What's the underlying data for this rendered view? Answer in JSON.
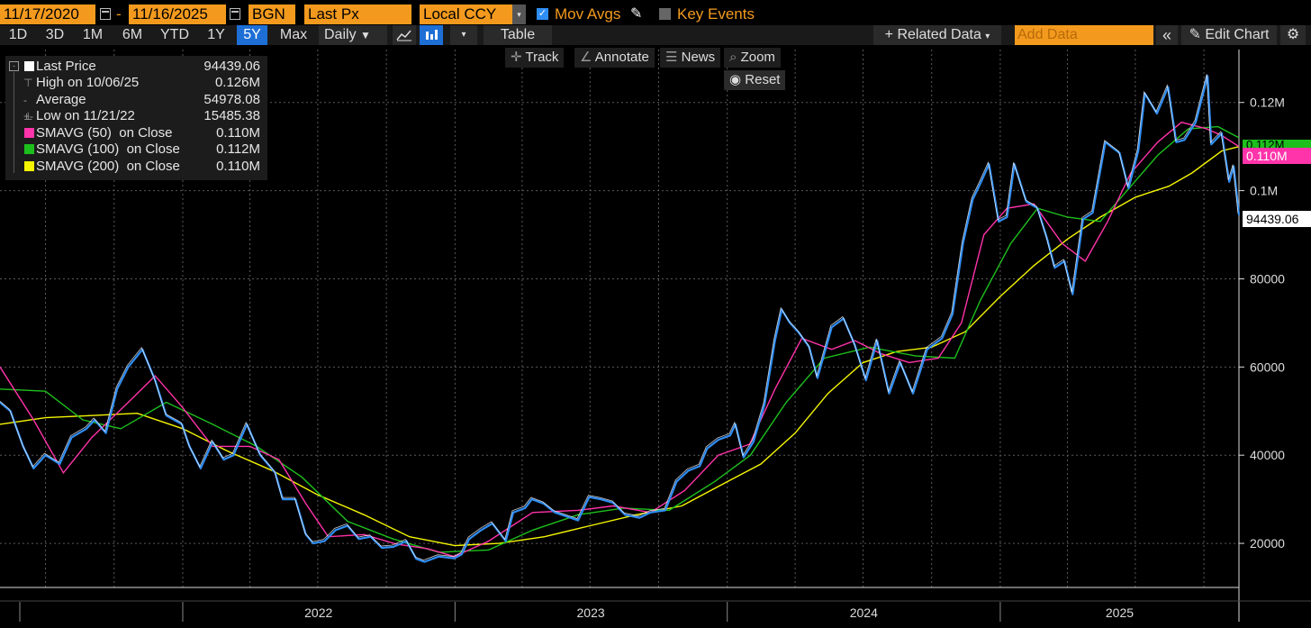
{
  "header": {
    "start_date": "11/17/2020",
    "date_sep": "-",
    "end_date": "11/16/2025",
    "source": "BGN",
    "field": "Last Px",
    "currency": "Local CCY",
    "mov_avgs_label": "Mov Avgs",
    "key_events_label": "Key Events"
  },
  "toolbar": {
    "periods": [
      "1D",
      "3D",
      "1M",
      "6M",
      "YTD",
      "1Y",
      "5Y",
      "Max"
    ],
    "selected_period": "5Y",
    "frequency": "Daily",
    "table_label": "Table",
    "related_data_label": "Related Data",
    "add_data_placeholder": "Add Data",
    "edit_chart_label": "Edit Chart"
  },
  "tools": {
    "track": "Track",
    "annotate": "Annotate",
    "news": "News",
    "zoom": "Zoom",
    "reset": "Reset"
  },
  "legend": {
    "last_price": {
      "label": "Last Price",
      "value": "94439.06"
    },
    "high": {
      "label": "High on 10/06/25",
      "value": "0.126M"
    },
    "average": {
      "label": "Average",
      "value": "54978.08"
    },
    "low": {
      "label": "Low on 11/21/22",
      "value": "15485.38"
    },
    "sma50": {
      "label": "SMAVG (50)  on Close",
      "value": "0.110M",
      "color": "#ff33aa"
    },
    "sma100": {
      "label": "SMAVG (100)  on Close",
      "value": "0.112M",
      "color": "#1dbf1d"
    },
    "sma200": {
      "label": "SMAVG (200)  on Close",
      "value": "0.110M",
      "color": "#f5f500"
    }
  },
  "tags": {
    "sma100": "0.112M",
    "sma50": "0.110M",
    "last": "94439.06"
  },
  "colors": {
    "accent": "#f39a1e",
    "price": "#2f8ef5",
    "price_highlight": "#ffffff",
    "sma50": "#ff33aa",
    "sma100": "#1dbf1d",
    "sma200": "#f5f500",
    "selected_tab": "#1d6fd6"
  },
  "chart_data": {
    "type": "line",
    "title": "BGN Last Px, Local CCY, Daily",
    "x_range": [
      "2021-05-01",
      "2025-11-17"
    ],
    "x_ticks": [
      "2022",
      "2023",
      "2024",
      "2025"
    ],
    "y_ticks": [
      20000,
      40000,
      60000,
      80000,
      "0.1M",
      "0.12M"
    ],
    "ylim": [
      10000,
      132000
    ],
    "grid": true,
    "series": [
      {
        "name": "Last Price",
        "color": "#2f8ef5",
        "points": [
          [
            "2021-05-01",
            52000
          ],
          [
            "2021-05-15",
            50000
          ],
          [
            "2021-06-01",
            42000
          ],
          [
            "2021-06-15",
            37000
          ],
          [
            "2021-07-01",
            40000
          ],
          [
            "2021-07-20",
            38000
          ],
          [
            "2021-08-05",
            44000
          ],
          [
            "2021-08-25",
            46000
          ],
          [
            "2021-09-05",
            48000
          ],
          [
            "2021-09-20",
            45000
          ],
          [
            "2021-10-05",
            55000
          ],
          [
            "2021-10-20",
            60000
          ],
          [
            "2021-11-08",
            64000
          ],
          [
            "2021-11-25",
            57000
          ],
          [
            "2021-12-10",
            49000
          ],
          [
            "2021-12-31",
            47000
          ],
          [
            "2022-01-10",
            42000
          ],
          [
            "2022-01-25",
            37000
          ],
          [
            "2022-02-10",
            43000
          ],
          [
            "2022-02-25",
            39000
          ],
          [
            "2022-03-10",
            40000
          ],
          [
            "2022-03-28",
            47000
          ],
          [
            "2022-04-15",
            40000
          ],
          [
            "2022-05-05",
            36000
          ],
          [
            "2022-05-15",
            30000
          ],
          [
            "2022-06-01",
            30000
          ],
          [
            "2022-06-15",
            22000
          ],
          [
            "2022-06-25",
            20000
          ],
          [
            "2022-07-10",
            20500
          ],
          [
            "2022-07-25",
            23000
          ],
          [
            "2022-08-10",
            24000
          ],
          [
            "2022-08-25",
            21000
          ],
          [
            "2022-09-10",
            21500
          ],
          [
            "2022-09-25",
            19000
          ],
          [
            "2022-10-10",
            19200
          ],
          [
            "2022-10-28",
            20500
          ],
          [
            "2022-11-10",
            16500
          ],
          [
            "2022-11-21",
            15800
          ],
          [
            "2022-12-10",
            17000
          ],
          [
            "2022-12-31",
            16600
          ],
          [
            "2023-01-10",
            17500
          ],
          [
            "2023-01-20",
            21000
          ],
          [
            "2023-02-05",
            23000
          ],
          [
            "2023-02-20",
            24500
          ],
          [
            "2023-03-10",
            20500
          ],
          [
            "2023-03-20",
            27000
          ],
          [
            "2023-04-05",
            28000
          ],
          [
            "2023-04-14",
            30000
          ],
          [
            "2023-04-30",
            29000
          ],
          [
            "2023-05-15",
            27000
          ],
          [
            "2023-06-05",
            25800
          ],
          [
            "2023-06-15",
            25200
          ],
          [
            "2023-06-30",
            30500
          ],
          [
            "2023-07-15",
            30000
          ],
          [
            "2023-08-01",
            29200
          ],
          [
            "2023-08-17",
            26500
          ],
          [
            "2023-09-05",
            25800
          ],
          [
            "2023-09-20",
            27000
          ],
          [
            "2023-10-10",
            27500
          ],
          [
            "2023-10-25",
            34000
          ],
          [
            "2023-11-10",
            36500
          ],
          [
            "2023-11-25",
            37500
          ],
          [
            "2023-12-05",
            41500
          ],
          [
            "2023-12-20",
            43500
          ],
          [
            "2024-01-05",
            44500
          ],
          [
            "2024-01-12",
            47000
          ],
          [
            "2024-01-23",
            39500
          ],
          [
            "2024-02-05",
            43000
          ],
          [
            "2024-02-20",
            51500
          ],
          [
            "2024-03-05",
            66000
          ],
          [
            "2024-03-14",
            73000
          ],
          [
            "2024-03-25",
            70000
          ],
          [
            "2024-04-05",
            68000
          ],
          [
            "2024-04-20",
            64500
          ],
          [
            "2024-05-01",
            57500
          ],
          [
            "2024-05-20",
            69000
          ],
          [
            "2024-06-05",
            71000
          ],
          [
            "2024-06-20",
            65000
          ],
          [
            "2024-07-05",
            57000
          ],
          [
            "2024-07-20",
            66000
          ],
          [
            "2024-08-05",
            54000
          ],
          [
            "2024-08-20",
            61000
          ],
          [
            "2024-09-06",
            54000
          ],
          [
            "2024-09-25",
            64000
          ],
          [
            "2024-10-15",
            66500
          ],
          [
            "2024-10-29",
            72000
          ],
          [
            "2024-11-12",
            88000
          ],
          [
            "2024-11-25",
            98000
          ],
          [
            "2024-12-05",
            101500
          ],
          [
            "2024-12-17",
            106000
          ],
          [
            "2024-12-30",
            93000
          ],
          [
            "2025-01-10",
            94000
          ],
          [
            "2025-01-20",
            106000
          ],
          [
            "2025-02-05",
            97500
          ],
          [
            "2025-02-20",
            96000
          ],
          [
            "2025-03-05",
            89000
          ],
          [
            "2025-03-15",
            82500
          ],
          [
            "2025-03-28",
            84000
          ],
          [
            "2025-04-08",
            76500
          ],
          [
            "2025-04-22",
            93500
          ],
          [
            "2025-05-05",
            95000
          ],
          [
            "2025-05-22",
            111000
          ],
          [
            "2025-06-10",
            108500
          ],
          [
            "2025-06-22",
            100500
          ],
          [
            "2025-07-05",
            109000
          ],
          [
            "2025-07-14",
            122000
          ],
          [
            "2025-07-30",
            117500
          ],
          [
            "2025-08-14",
            123500
          ],
          [
            "2025-08-25",
            111000
          ],
          [
            "2025-09-05",
            111500
          ],
          [
            "2025-09-20",
            115500
          ],
          [
            "2025-10-06",
            126000
          ],
          [
            "2025-10-11",
            110500
          ],
          [
            "2025-10-25",
            113000
          ],
          [
            "2025-11-04",
            102000
          ],
          [
            "2025-11-10",
            105500
          ],
          [
            "2025-11-17",
            94439
          ]
        ]
      },
      {
        "name": "SMAVG (50) on Close",
        "color": "#ff33aa",
        "points": [
          [
            "2021-05-01",
            60000
          ],
          [
            "2021-06-15",
            48000
          ],
          [
            "2021-07-25",
            36000
          ],
          [
            "2021-09-01",
            44000
          ],
          [
            "2021-10-20",
            52000
          ],
          [
            "2021-11-25",
            58000
          ],
          [
            "2021-12-31",
            51000
          ],
          [
            "2022-02-10",
            42000
          ],
          [
            "2022-04-01",
            42000
          ],
          [
            "2022-05-10",
            39000
          ],
          [
            "2022-06-15",
            29000
          ],
          [
            "2022-07-15",
            21500
          ],
          [
            "2022-09-01",
            22000
          ],
          [
            "2022-10-15",
            19800
          ],
          [
            "2022-11-25",
            18800
          ],
          [
            "2022-12-31",
            17000
          ],
          [
            "2023-02-15",
            20500
          ],
          [
            "2023-04-15",
            27000
          ],
          [
            "2023-06-15",
            27500
          ],
          [
            "2023-08-01",
            28500
          ],
          [
            "2023-09-20",
            27000
          ],
          [
            "2023-11-05",
            32000
          ],
          [
            "2023-12-20",
            40000
          ],
          [
            "2024-01-31",
            42500
          ],
          [
            "2024-03-05",
            55000
          ],
          [
            "2024-04-10",
            66500
          ],
          [
            "2024-05-20",
            64000
          ],
          [
            "2024-06-20",
            66000
          ],
          [
            "2024-07-25",
            63000
          ],
          [
            "2024-09-01",
            61000
          ],
          [
            "2024-10-10",
            62000
          ],
          [
            "2024-11-10",
            70000
          ],
          [
            "2024-12-10",
            90000
          ],
          [
            "2025-01-10",
            96000
          ],
          [
            "2025-02-15",
            97000
          ],
          [
            "2025-03-25",
            88000
          ],
          [
            "2025-04-25",
            84000
          ],
          [
            "2025-05-25",
            93000
          ],
          [
            "2025-06-25",
            104000
          ],
          [
            "2025-07-31",
            111000
          ],
          [
            "2025-09-01",
            115500
          ],
          [
            "2025-10-05",
            114000
          ],
          [
            "2025-10-25",
            112500
          ],
          [
            "2025-11-17",
            110000
          ]
        ]
      },
      {
        "name": "SMAVG (100) on Close",
        "color": "#1dbf1d",
        "points": [
          [
            "2021-05-01",
            55000
          ],
          [
            "2021-07-01",
            54500
          ],
          [
            "2021-08-20",
            48000
          ],
          [
            "2021-10-10",
            46000
          ],
          [
            "2021-12-10",
            52000
          ],
          [
            "2022-02-10",
            47000
          ],
          [
            "2022-04-10",
            42000
          ],
          [
            "2022-06-10",
            35000
          ],
          [
            "2022-08-10",
            25000
          ],
          [
            "2022-10-10",
            21000
          ],
          [
            "2022-12-10",
            18000
          ],
          [
            "2023-02-15",
            18500
          ],
          [
            "2023-04-15",
            23000
          ],
          [
            "2023-06-15",
            26500
          ],
          [
            "2023-08-15",
            28000
          ],
          [
            "2023-10-15",
            27500
          ],
          [
            "2023-12-15",
            34000
          ],
          [
            "2024-02-01",
            40000
          ],
          [
            "2024-03-20",
            52000
          ],
          [
            "2024-05-10",
            62000
          ],
          [
            "2024-07-10",
            64500
          ],
          [
            "2024-09-10",
            62500
          ],
          [
            "2024-11-01",
            62000
          ],
          [
            "2024-12-05",
            75000
          ],
          [
            "2025-01-15",
            88000
          ],
          [
            "2025-02-20",
            96000
          ],
          [
            "2025-04-01",
            94000
          ],
          [
            "2025-05-15",
            93000
          ],
          [
            "2025-06-20",
            100000
          ],
          [
            "2025-07-31",
            108000
          ],
          [
            "2025-09-10",
            114000
          ],
          [
            "2025-10-20",
            114500
          ],
          [
            "2025-11-17",
            112000
          ]
        ]
      },
      {
        "name": "SMAVG (200) on Close",
        "color": "#f5f500",
        "points": [
          [
            "2021-05-01",
            47000
          ],
          [
            "2021-07-01",
            48500
          ],
          [
            "2021-09-01",
            49000
          ],
          [
            "2021-11-01",
            49500
          ],
          [
            "2022-01-01",
            46000
          ],
          [
            "2022-03-01",
            41000
          ],
          [
            "2022-05-01",
            36500
          ],
          [
            "2022-07-01",
            31000
          ],
          [
            "2022-09-01",
            26500
          ],
          [
            "2022-11-01",
            21500
          ],
          [
            "2023-01-01",
            19500
          ],
          [
            "2023-03-01",
            20000
          ],
          [
            "2023-05-01",
            21500
          ],
          [
            "2023-07-01",
            24000
          ],
          [
            "2023-09-01",
            26500
          ],
          [
            "2023-11-01",
            28500
          ],
          [
            "2024-01-01",
            34000
          ],
          [
            "2024-02-15",
            38000
          ],
          [
            "2024-04-01",
            45000
          ],
          [
            "2024-05-15",
            54000
          ],
          [
            "2024-07-01",
            61000
          ],
          [
            "2024-08-15",
            63500
          ],
          [
            "2024-10-01",
            64500
          ],
          [
            "2024-11-15",
            68000
          ],
          [
            "2025-01-01",
            76000
          ],
          [
            "2025-02-15",
            83000
          ],
          [
            "2025-04-01",
            89000
          ],
          [
            "2025-05-15",
            94000
          ],
          [
            "2025-07-01",
            98500
          ],
          [
            "2025-08-15",
            101000
          ],
          [
            "2025-09-15",
            104000
          ],
          [
            "2025-10-25",
            109000
          ],
          [
            "2025-11-17",
            110000
          ]
        ]
      }
    ]
  }
}
